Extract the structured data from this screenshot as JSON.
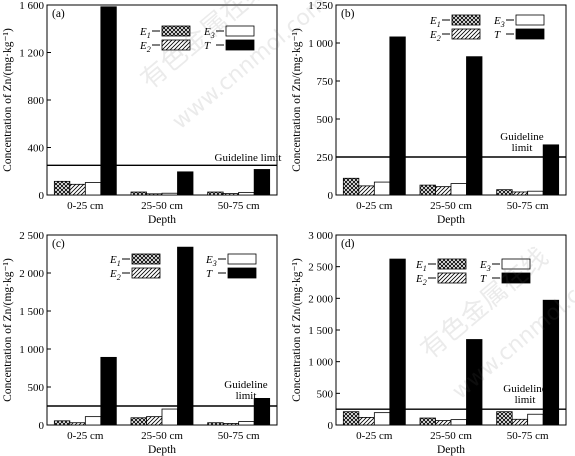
{
  "chart_data": [
    {
      "type": "bar",
      "panel_label": "(a)",
      "categories": [
        "0-25 cm",
        "25-50 cm",
        "50-75 cm"
      ],
      "xlabel": "Depth",
      "ylabel": "Concentration of Zn/(mg·kg⁻¹)",
      "ylim": [
        0,
        1600
      ],
      "yticks": [
        0,
        400,
        800,
        1200,
        1600
      ],
      "ytick_labels": [
        "0",
        "400",
        "800",
        "1 200",
        "1 600"
      ],
      "guideline": 250,
      "guideline_label": [
        "Guideline limit"
      ],
      "legend_position": "top-center",
      "series": [
        {
          "name": "E1",
          "values": [
            115,
            25,
            25
          ]
        },
        {
          "name": "E2",
          "values": [
            90,
            10,
            12
          ]
        },
        {
          "name": "E3",
          "values": [
            105,
            15,
            22
          ]
        },
        {
          "name": "T",
          "values": [
            1585,
            195,
            215
          ]
        }
      ]
    },
    {
      "type": "bar",
      "panel_label": "(b)",
      "categories": [
        "0-25 cm",
        "25-50 cm",
        "50-75 cm"
      ],
      "xlabel": "Depth",
      "ylabel": "Concentration of Zn/(mg·kg⁻¹)",
      "ylim": [
        0,
        1250
      ],
      "yticks": [
        0,
        250,
        500,
        750,
        1000,
        1250
      ],
      "ytick_labels": [
        "0",
        "250",
        "500",
        "750",
        "1 000",
        "1 250"
      ],
      "guideline": 250,
      "guideline_label": [
        "Guideline",
        "limit"
      ],
      "legend_position": "top-center",
      "series": [
        {
          "name": "E1",
          "values": [
            110,
            65,
            35
          ]
        },
        {
          "name": "E2",
          "values": [
            60,
            55,
            20
          ]
        },
        {
          "name": "E3",
          "values": [
            85,
            75,
            25
          ]
        },
        {
          "name": "T",
          "values": [
            1040,
            910,
            330
          ]
        }
      ]
    },
    {
      "type": "bar",
      "panel_label": "(c)",
      "categories": [
        "0-25 cm",
        "25-50 cm",
        "50-75 cm"
      ],
      "xlabel": "Depth",
      "ylabel": "Concentration of Zn/(mg·kg⁻¹)",
      "ylim": [
        0,
        2500
      ],
      "yticks": [
        0,
        500,
        1000,
        1500,
        2000,
        2500
      ],
      "ytick_labels": [
        "0",
        "500",
        "1 000",
        "1 500",
        "2 000",
        "2 500"
      ],
      "guideline": 250,
      "guideline_label": [
        "Guideline",
        "limit"
      ],
      "legend_position": "top-left",
      "series": [
        {
          "name": "E1",
          "values": [
            55,
            95,
            30
          ]
        },
        {
          "name": "E2",
          "values": [
            30,
            110,
            20
          ]
        },
        {
          "name": "E3",
          "values": [
            110,
            210,
            45
          ]
        },
        {
          "name": "T",
          "values": [
            890,
            2340,
            350
          ]
        }
      ]
    },
    {
      "type": "bar",
      "panel_label": "(d)",
      "categories": [
        "0-25 cm",
        "25-50 cm",
        "50-75 cm"
      ],
      "xlabel": "Depth",
      "ylabel": "Concentration of Zn/(mg·kg⁻¹)",
      "ylim": [
        0,
        3000
      ],
      "yticks": [
        0,
        500,
        1000,
        1500,
        2000,
        2500,
        3000
      ],
      "ytick_labels": [
        "0",
        "500",
        "1 000",
        "1 500",
        "2 000",
        "2 500",
        "3 000"
      ],
      "guideline": 250,
      "guideline_label": [
        "Guideline",
        "limit"
      ],
      "legend_position": "top-left",
      "series": [
        {
          "name": "E1",
          "values": [
            210,
            110,
            210
          ]
        },
        {
          "name": "E2",
          "values": [
            120,
            70,
            90
          ]
        },
        {
          "name": "E3",
          "values": [
            195,
            85,
            170
          ]
        },
        {
          "name": "T",
          "values": [
            2620,
            1350,
            1970
          ]
        }
      ]
    }
  ],
  "watermarks": [
    "有色金属在线",
    "www.cnnmol.com"
  ]
}
